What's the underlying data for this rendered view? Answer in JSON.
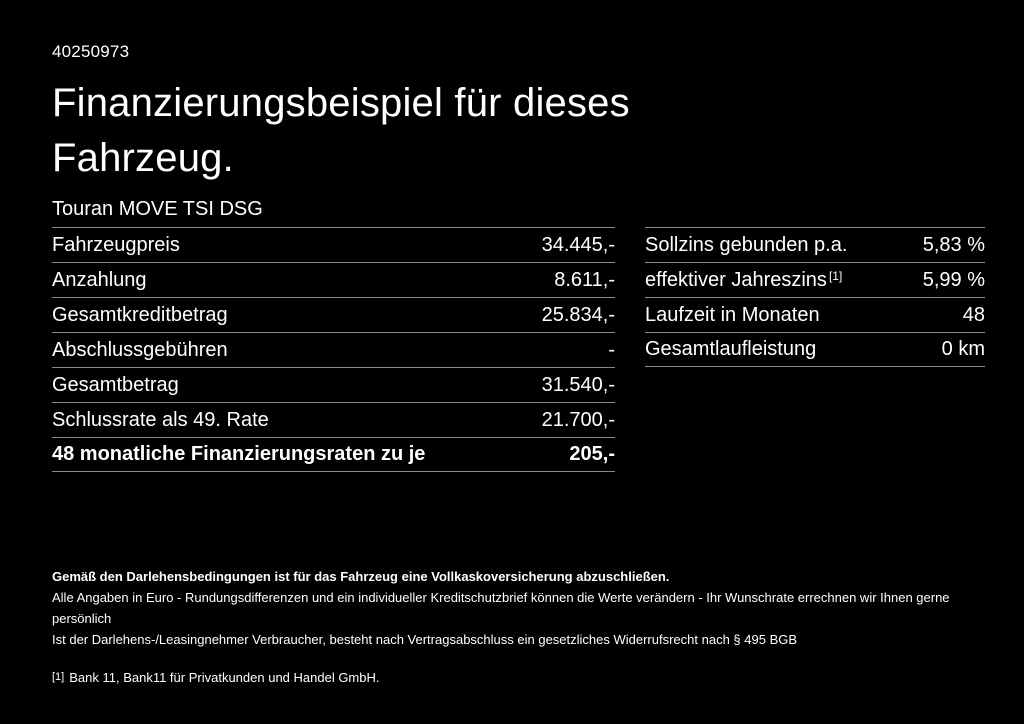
{
  "header": {
    "id_number": "40250973",
    "title_line1": "Finanzierungsbeispiel für dieses",
    "title_line2": "Fahrzeug.",
    "subtitle": "Touran MOVE TSI DSG"
  },
  "left_table": {
    "rows": [
      {
        "label": "Fahrzeugpreis",
        "value": "34.445,-",
        "bold": false
      },
      {
        "label": "Anzahlung",
        "value": "8.611,-",
        "bold": false
      },
      {
        "label": "Gesamtkreditbetrag",
        "value": "25.834,-",
        "bold": false
      },
      {
        "label": "Abschlussgebühren",
        "value": "-",
        "bold": false
      },
      {
        "label": "Gesamtbetrag",
        "value": "31.540,-",
        "bold": false
      },
      {
        "label": "Schlussrate als 49. Rate",
        "value": "21.700,-",
        "bold": false
      },
      {
        "label": "48 monatliche Finanzierungsraten zu je",
        "value": "205,-",
        "bold": true
      }
    ]
  },
  "right_table": {
    "rows": [
      {
        "label": "Sollzins gebunden p.a.",
        "value": "5,83 %",
        "bold": false
      },
      {
        "label": "effektiver Jahreszins",
        "label_sup": "[1]",
        "value": "5,99 %",
        "bold": false
      },
      {
        "label": "Laufzeit in Monaten",
        "value": "48",
        "bold": false
      },
      {
        "label": "Gesamtlaufleistung",
        "value": "0 km",
        "bold": false
      }
    ]
  },
  "footer": {
    "bold_line": "Gemäß den Darlehensbedingungen ist für das Fahrzeug eine Vollkaskoversicherung abzuschließen.",
    "line2": "Alle Angaben in Euro - Rundungsdifferenzen und ein individueller Kreditschutzbrief können die Werte verändern - Ihr Wunschrate errechnen wir Ihnen gerne persönlich",
    "line3": "Ist der Darlehens-/Leasingnehmer Verbraucher, besteht nach Vertragsabschluss ein gesetzliches Widerrufsrecht nach § 495 BGB",
    "footnote_marker": "[1]",
    "footnote_text": "Bank 11, Bank11 für Privatkunden und Handel GmbH."
  },
  "colors": {
    "background": "#000000",
    "text": "#ffffff",
    "divider": "#8c8c8c"
  }
}
